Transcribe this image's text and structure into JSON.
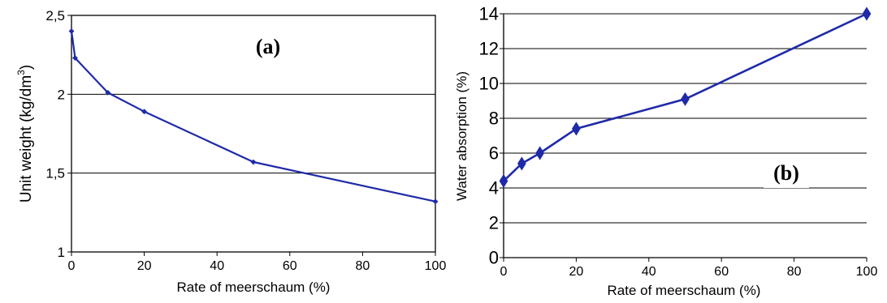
{
  "chart_data": [
    {
      "type": "line",
      "panel_label": "(a)",
      "xlabel": "Rate of meerschaum (%)",
      "ylabel": "Unit weight (kg/dm",
      "ylabel_sup": "3",
      "ylabel_end": ")",
      "xlim": [
        0,
        100
      ],
      "ylim": [
        1,
        2.5
      ],
      "x_ticks": [
        0,
        20,
        40,
        60,
        80,
        100
      ],
      "x_tick_labels": [
        "0",
        "20",
        "40",
        "60",
        "80",
        "100"
      ],
      "y_ticks": [
        1,
        1.5,
        2,
        2.5
      ],
      "y_tick_labels": [
        "1",
        "1,5",
        "2",
        "2,5"
      ],
      "gridlines_y": [
        1.5,
        2
      ],
      "series": [
        {
          "color": "#1f2aa8",
          "marker": "small-diamond",
          "x": [
            0,
            1,
            10,
            20,
            50,
            100
          ],
          "y": [
            2.4,
            2.23,
            2.01,
            1.89,
            1.57,
            1.32
          ]
        }
      ]
    },
    {
      "type": "line",
      "panel_label": "(b)",
      "xlabel": "Rate of meerschaum (%)",
      "ylabel": "Water absorption (%)",
      "xlim": [
        0,
        100
      ],
      "ylim": [
        0,
        14
      ],
      "x_ticks": [
        0,
        20,
        40,
        60,
        80,
        100
      ],
      "x_tick_labels": [
        "0",
        "20",
        "40",
        "60",
        "80",
        "100"
      ],
      "y_ticks": [
        0,
        2,
        4,
        6,
        8,
        10,
        12,
        14
      ],
      "y_tick_labels": [
        "0",
        "2",
        "4",
        "6",
        "8",
        "10",
        "12",
        "14"
      ],
      "gridlines_y": [
        2,
        4,
        6,
        8,
        10,
        12,
        14
      ],
      "series": [
        {
          "color": "#1f2aa8",
          "marker": "diamond",
          "x": [
            0,
            5,
            10,
            20,
            50,
            100
          ],
          "y": [
            4.4,
            5.4,
            6.0,
            7.4,
            9.1,
            14.0
          ]
        }
      ]
    }
  ]
}
